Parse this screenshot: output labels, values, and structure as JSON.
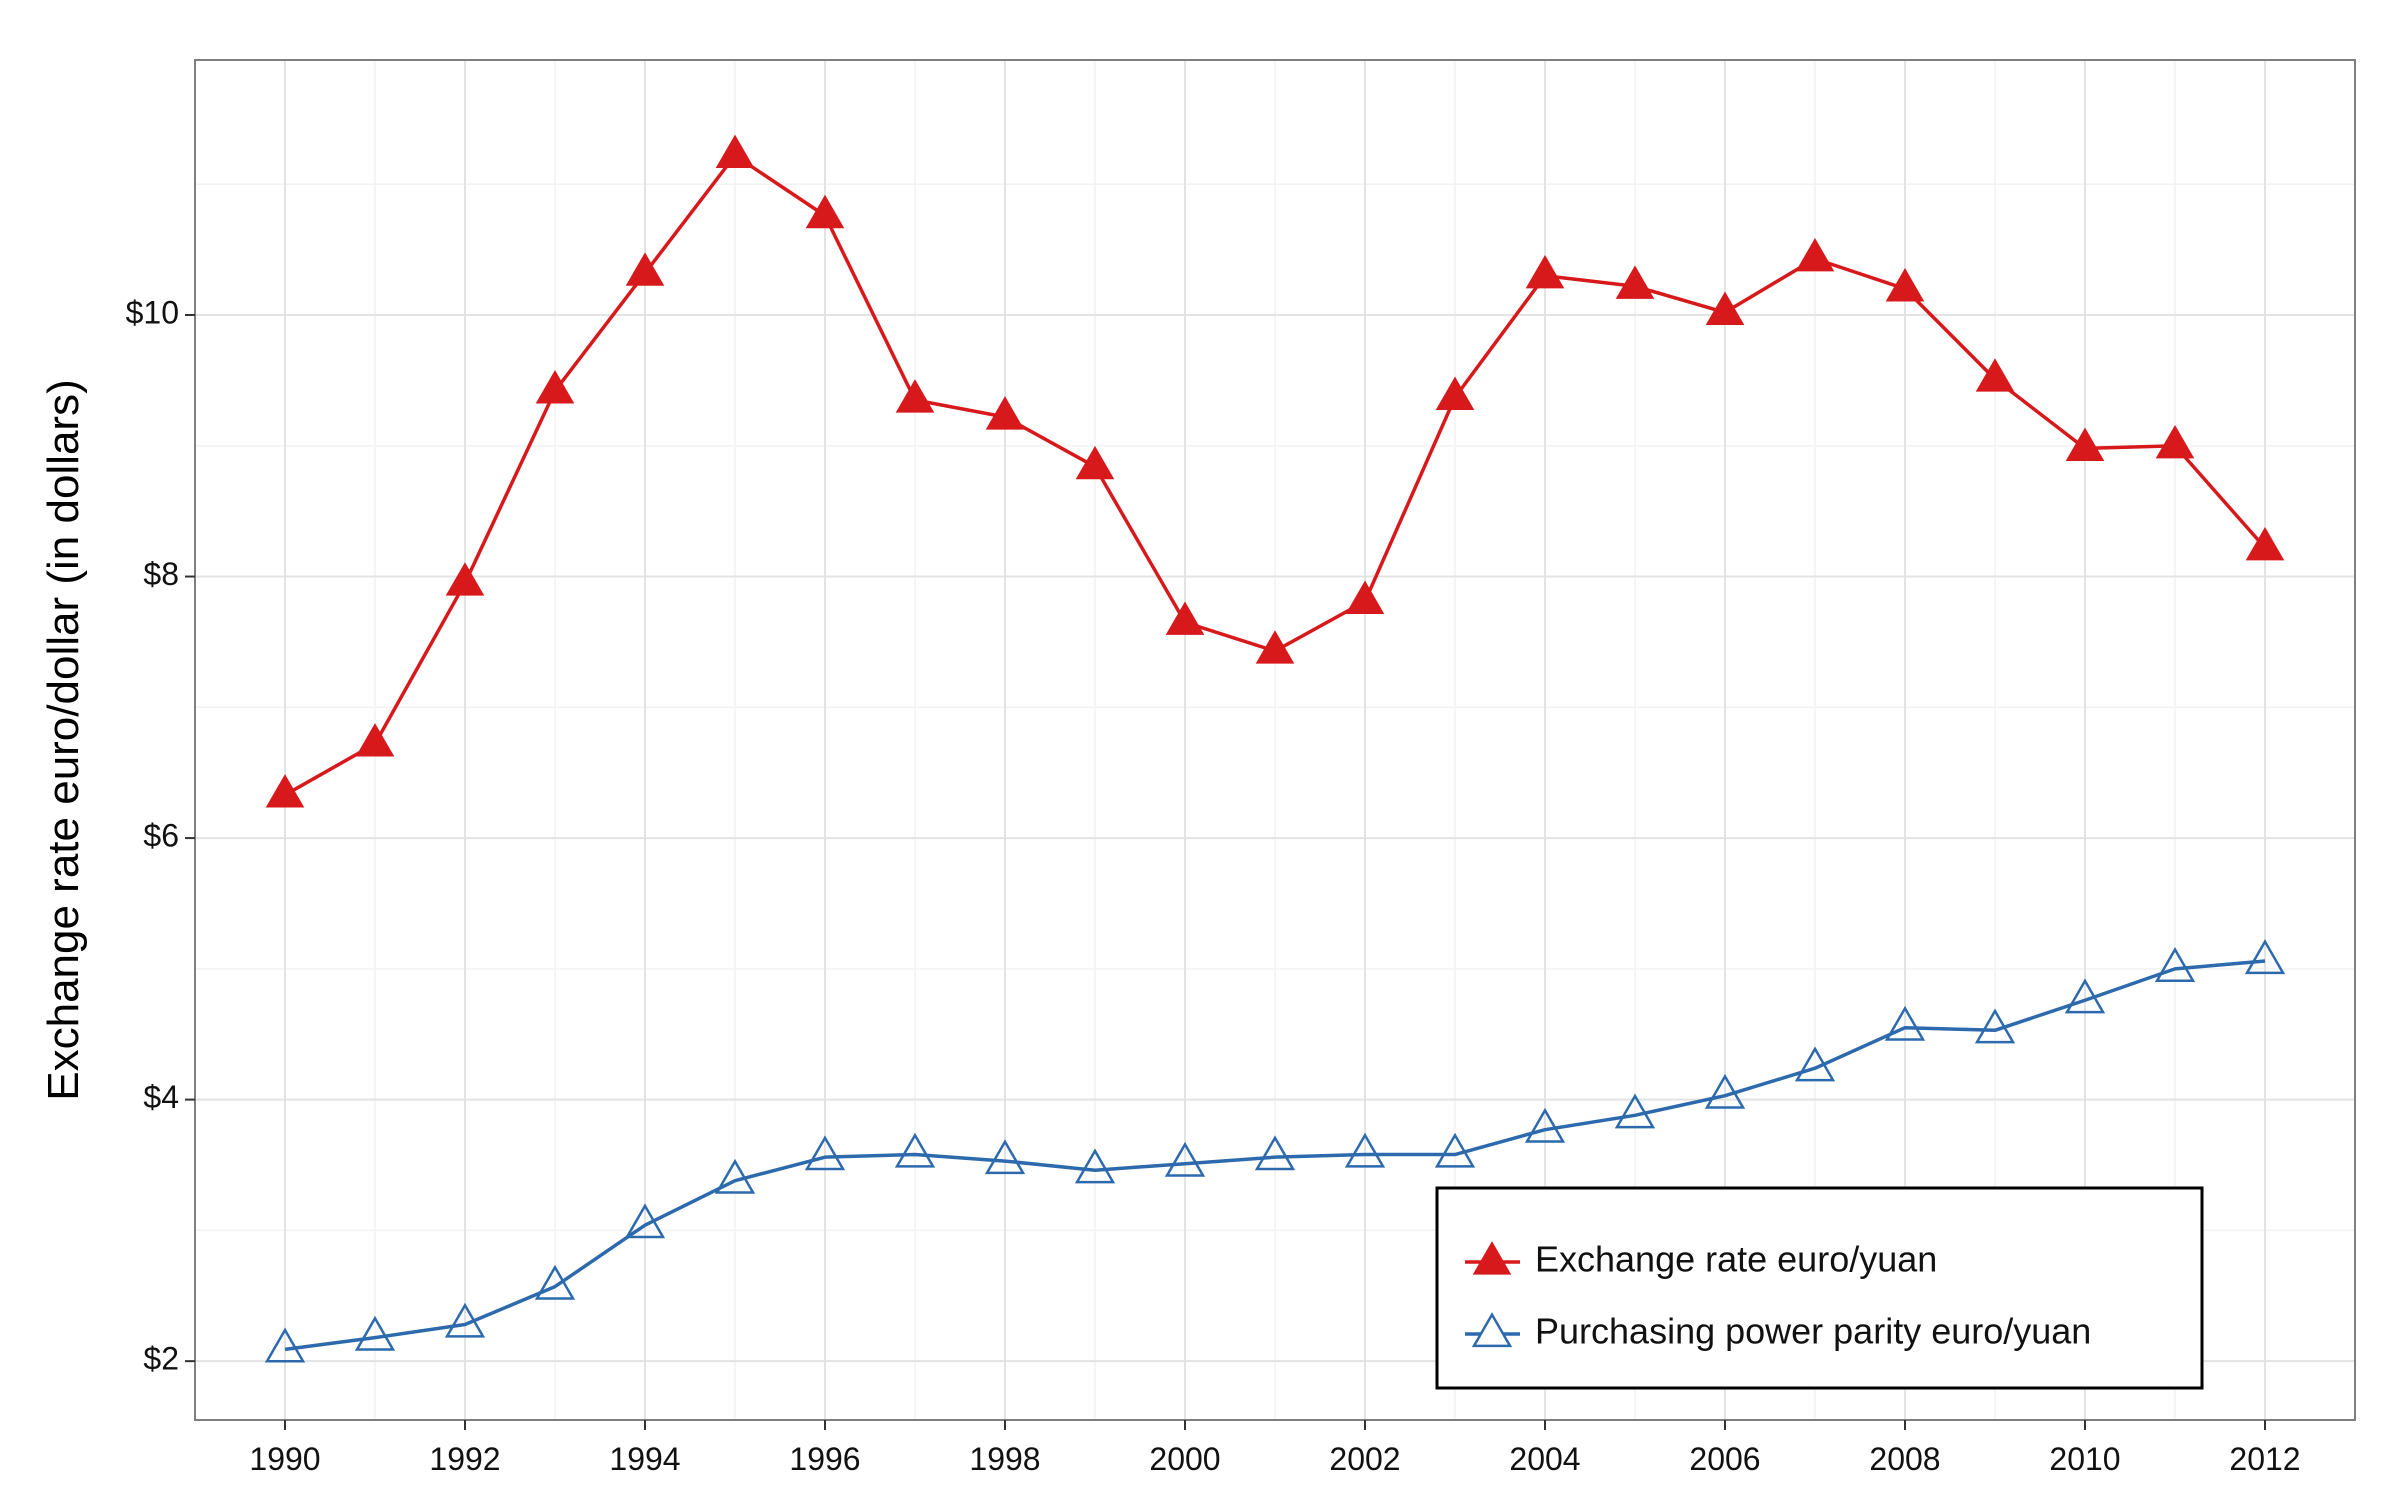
{
  "chart_data": {
    "type": "line",
    "title": "",
    "xlabel": "",
    "ylabel": "Exchange rate euro/dollar (in dollars)",
    "x": [
      1990,
      1991,
      1992,
      1993,
      1994,
      1995,
      1996,
      1997,
      1998,
      1999,
      2000,
      2001,
      2002,
      2003,
      2004,
      2005,
      2006,
      2007,
      2008,
      2009,
      2010,
      2011,
      2012
    ],
    "xlim": [
      1989,
      2013
    ],
    "ylim": [
      1.55,
      11.95
    ],
    "x_ticks": [
      1990,
      1992,
      1994,
      1996,
      1998,
      2000,
      2002,
      2004,
      2006,
      2008,
      2010,
      2012
    ],
    "x_tick_labels": [
      "1990",
      "1992",
      "1994",
      "1996",
      "1998",
      "2000",
      "2002",
      "2004",
      "2006",
      "2008",
      "2010",
      "2012"
    ],
    "y_ticks": [
      2,
      4,
      6,
      8,
      10
    ],
    "y_tick_labels": [
      "$2",
      "$4",
      "$6",
      "$8",
      "$10"
    ],
    "grid": true,
    "legend_position": "bottom-right",
    "series": [
      {
        "name": "Exchange rate euro/yuan",
        "color": "#d7191c",
        "marker": "triangle-filled",
        "values": [
          6.33,
          6.72,
          7.95,
          9.42,
          10.32,
          11.22,
          10.76,
          9.35,
          9.22,
          8.84,
          7.65,
          7.43,
          7.81,
          9.37,
          10.3,
          10.22,
          10.02,
          10.43,
          10.2,
          9.51,
          8.98,
          9.0,
          8.22
        ]
      },
      {
        "name": "Purchasing power parity euro/yuan",
        "color": "#2c6aad",
        "marker": "triangle-open",
        "values": [
          2.09,
          2.18,
          2.28,
          2.57,
          3.04,
          3.38,
          3.56,
          3.58,
          3.53,
          3.46,
          3.51,
          3.56,
          3.58,
          3.58,
          3.77,
          3.88,
          4.03,
          4.24,
          4.55,
          4.53,
          4.76,
          5.0,
          5.06
        ]
      }
    ]
  }
}
